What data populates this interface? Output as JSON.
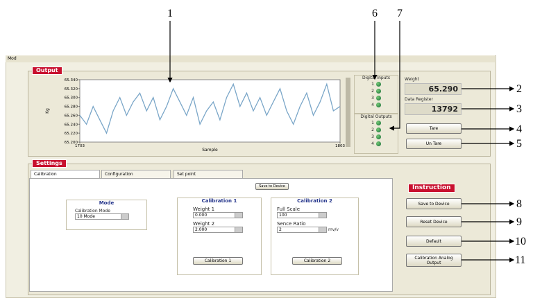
{
  "window_title": "Mod",
  "callouts": [
    "1",
    "2",
    "3",
    "4",
    "5",
    "6",
    "7",
    "8",
    "9",
    "10",
    "11"
  ],
  "output": {
    "label": "Output",
    "chart": {
      "type": "line",
      "ylabel": "Kg",
      "xlabel": "Sample",
      "yticks": [
        {
          "value": 65.34,
          "label": "65.340"
        },
        {
          "value": 65.32,
          "label": "65.320"
        },
        {
          "value": 65.3,
          "label": "65.300"
        },
        {
          "value": 65.28,
          "label": "65.280"
        },
        {
          "value": 65.26,
          "label": "65.260"
        },
        {
          "value": 65.24,
          "label": "65.240"
        },
        {
          "value": 65.22,
          "label": "65.220"
        },
        {
          "value": 65.2,
          "label": "65.200"
        }
      ],
      "ylim": [
        65.2,
        65.34
      ],
      "xticks": [
        1703,
        1803
      ],
      "xlim": [
        1703,
        1803
      ],
      "color": "#7aa6c8",
      "values": [
        65.26,
        65.24,
        65.28,
        65.25,
        65.22,
        65.27,
        65.3,
        65.26,
        65.29,
        65.31,
        65.27,
        65.3,
        65.25,
        65.28,
        65.32,
        65.29,
        65.26,
        65.3,
        65.24,
        65.27,
        65.29,
        65.25,
        65.3,
        65.33,
        65.28,
        65.31,
        65.27,
        65.3,
        65.26,
        65.29,
        65.32,
        65.27,
        65.24,
        65.28,
        65.31,
        65.26,
        65.29,
        65.33,
        65.27,
        65.28
      ]
    },
    "digital_inputs": {
      "title": "Digital Inputs",
      "labels": [
        "1",
        "2",
        "3",
        "4"
      ]
    },
    "digital_outputs": {
      "title": "Digital Outputs",
      "labels": [
        "1",
        "2",
        "3",
        "4"
      ]
    },
    "weight": {
      "label": "Weight",
      "value": "65.290"
    },
    "data_register": {
      "label": "Data Register",
      "value": "13792"
    },
    "buttons": [
      "Tare",
      "Un Tare"
    ]
  },
  "settings": {
    "label": "Settings",
    "tabs": [
      "Calibration",
      "Configuration",
      "Set point"
    ],
    "save_button": "Save to Device",
    "mode": {
      "title": "Mode",
      "field_label": "Calibration Mode",
      "field_value": "10 Mode"
    },
    "calibration1": {
      "title": "Calibration 1",
      "weight1_label": "Weight 1",
      "weight1": "0.000",
      "weight2_label": "Weight 2",
      "weight2": "2.000",
      "button": "Calibration 1"
    },
    "calibration2": {
      "title": "Calibration 2",
      "full_scale_label": "Full Scale",
      "full_scale": "100",
      "sense_label": "Sence Ratio",
      "sense": "2",
      "sense_unit": "mv/v",
      "button": "Calibration 2"
    },
    "instruction": {
      "label": "Instruction",
      "buttons": [
        "Save to Device",
        "Reset Device",
        "Default",
        "Calibration Analog Output"
      ]
    }
  }
}
